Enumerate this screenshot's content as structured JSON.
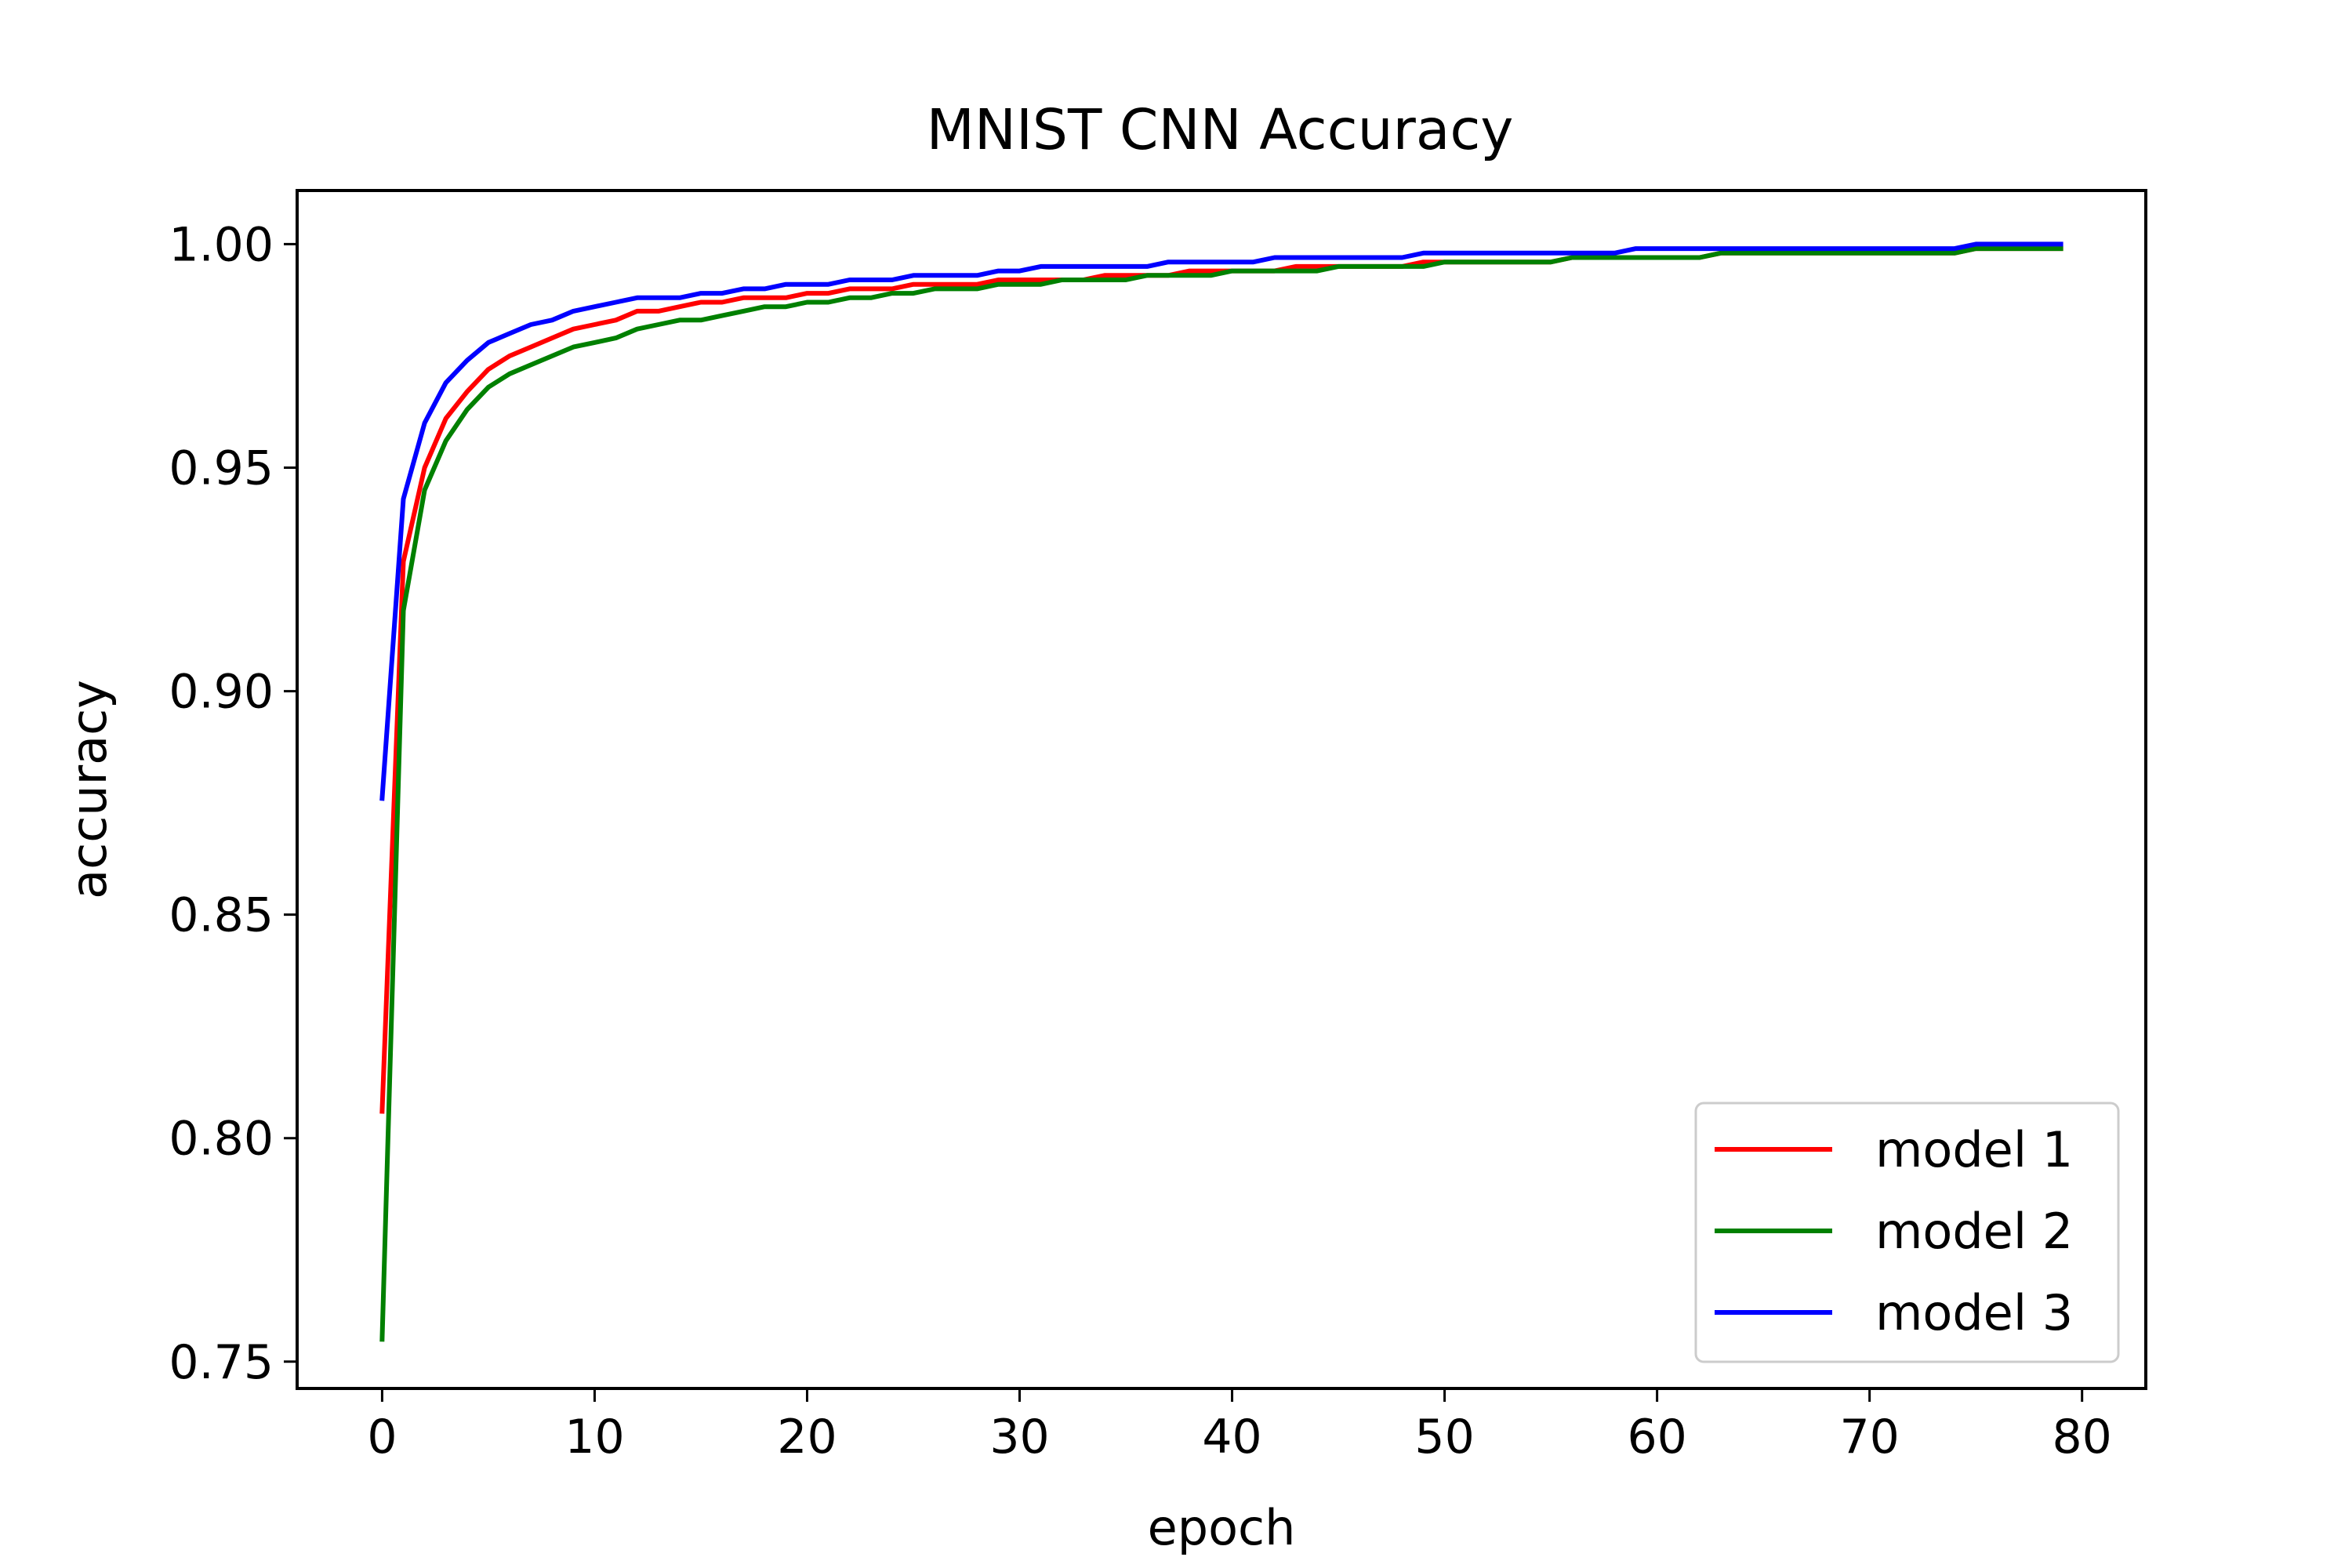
{
  "chart_data": {
    "type": "line",
    "title": "MNIST CNN Accuracy",
    "xlabel": "epoch",
    "ylabel": "accuracy",
    "xlim": [
      -4,
      83
    ],
    "ylim": [
      0.744,
      1.012
    ],
    "xticks": [
      0,
      10,
      20,
      30,
      40,
      50,
      60,
      70,
      80
    ],
    "xtick_labels": [
      "0",
      "10",
      "20",
      "30",
      "40",
      "50",
      "60",
      "70",
      "80"
    ],
    "yticks": [
      0.75,
      0.8,
      0.85,
      0.9,
      0.95,
      1.0
    ],
    "ytick_labels": [
      "0.75",
      "0.80",
      "0.85",
      "0.90",
      "0.95",
      "1.00"
    ],
    "grid": false,
    "legend_position": "lower right",
    "x": [
      0,
      1,
      2,
      3,
      4,
      5,
      6,
      7,
      8,
      9,
      10,
      11,
      12,
      13,
      14,
      15,
      16,
      17,
      18,
      19,
      20,
      21,
      22,
      23,
      24,
      25,
      26,
      27,
      28,
      29,
      30,
      31,
      32,
      33,
      34,
      35,
      36,
      37,
      38,
      39,
      40,
      41,
      42,
      43,
      44,
      45,
      46,
      47,
      48,
      49,
      50,
      51,
      52,
      53,
      54,
      55,
      56,
      57,
      58,
      59,
      60,
      61,
      62,
      63,
      64,
      65,
      66,
      67,
      68,
      69,
      70,
      71,
      72,
      73,
      74,
      75,
      76,
      77,
      78,
      79
    ],
    "series": [
      {
        "name": "model 1",
        "color": "#ff0000",
        "values": [
          0.806,
          0.929,
          0.95,
          0.961,
          0.967,
          0.972,
          0.975,
          0.977,
          0.979,
          0.981,
          0.982,
          0.983,
          0.985,
          0.985,
          0.986,
          0.987,
          0.987,
          0.988,
          0.988,
          0.988,
          0.989,
          0.989,
          0.99,
          0.99,
          0.99,
          0.991,
          0.991,
          0.991,
          0.991,
          0.992,
          0.992,
          0.992,
          0.992,
          0.992,
          0.993,
          0.993,
          0.993,
          0.993,
          0.994,
          0.994,
          0.994,
          0.994,
          0.994,
          0.995,
          0.995,
          0.995,
          0.995,
          0.995,
          0.995,
          0.996,
          0.996,
          0.996,
          0.996,
          0.996,
          0.996,
          0.996,
          0.997,
          0.997,
          0.997,
          0.997,
          0.997,
          0.997,
          0.997,
          0.998,
          0.998,
          0.998,
          0.998,
          0.998,
          0.998,
          0.998,
          0.998,
          0.998,
          0.998,
          0.998,
          0.998,
          0.999,
          0.999,
          0.999,
          0.999,
          0.999
        ]
      },
      {
        "name": "model 2",
        "color": "#008000",
        "values": [
          0.755,
          0.918,
          0.945,
          0.956,
          0.963,
          0.968,
          0.971,
          0.973,
          0.975,
          0.977,
          0.978,
          0.979,
          0.981,
          0.982,
          0.983,
          0.983,
          0.984,
          0.985,
          0.986,
          0.986,
          0.987,
          0.987,
          0.988,
          0.988,
          0.989,
          0.989,
          0.99,
          0.99,
          0.99,
          0.991,
          0.991,
          0.991,
          0.992,
          0.992,
          0.992,
          0.992,
          0.993,
          0.993,
          0.993,
          0.993,
          0.994,
          0.994,
          0.994,
          0.994,
          0.994,
          0.995,
          0.995,
          0.995,
          0.995,
          0.995,
          0.996,
          0.996,
          0.996,
          0.996,
          0.996,
          0.996,
          0.997,
          0.997,
          0.997,
          0.997,
          0.997,
          0.997,
          0.997,
          0.998,
          0.998,
          0.998,
          0.998,
          0.998,
          0.998,
          0.998,
          0.998,
          0.998,
          0.998,
          0.998,
          0.998,
          0.999,
          0.999,
          0.999,
          0.999,
          0.999
        ]
      },
      {
        "name": "model 3",
        "color": "#0000ff",
        "values": [
          0.876,
          0.943,
          0.96,
          0.969,
          0.974,
          0.978,
          0.98,
          0.982,
          0.983,
          0.985,
          0.986,
          0.987,
          0.988,
          0.988,
          0.988,
          0.989,
          0.989,
          0.99,
          0.99,
          0.991,
          0.991,
          0.991,
          0.992,
          0.992,
          0.992,
          0.993,
          0.993,
          0.993,
          0.993,
          0.994,
          0.994,
          0.995,
          0.995,
          0.995,
          0.995,
          0.995,
          0.995,
          0.996,
          0.996,
          0.996,
          0.996,
          0.996,
          0.997,
          0.997,
          0.997,
          0.997,
          0.997,
          0.997,
          0.997,
          0.998,
          0.998,
          0.998,
          0.998,
          0.998,
          0.998,
          0.998,
          0.998,
          0.998,
          0.998,
          0.999,
          0.999,
          0.999,
          0.999,
          0.999,
          0.999,
          0.999,
          0.999,
          0.999,
          0.999,
          0.999,
          0.999,
          0.999,
          0.999,
          0.999,
          0.999,
          1.0,
          1.0,
          1.0,
          1.0,
          1.0
        ]
      }
    ]
  }
}
